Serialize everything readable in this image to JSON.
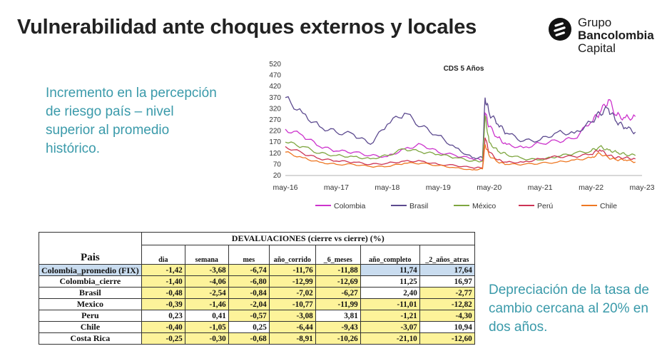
{
  "title": "Vulnerabilidad ante choques externos y locales",
  "logo": {
    "line1": "Grupo",
    "line2": "Bancolombia",
    "line3": "Capital"
  },
  "callout_left": "Incremento en la percepción de riesgo país – nivel superior al promedio histórico.",
  "callout_right": "Depreciación de la tasa de cambio cercana al 20% en dos años.",
  "colors": {
    "accent_text": "#3a9aaa",
    "highlight_yellow": "#fdf39a",
    "highlight_blue": "#c9dcef"
  },
  "chart_data": {
    "type": "line",
    "title": "CDS 5 Años",
    "ylim": [
      20,
      520
    ],
    "yticks": [
      "520",
      "470",
      "420",
      "370",
      "320",
      "270",
      "220",
      "170",
      "120",
      "70",
      "20"
    ],
    "xticks": [
      "may-16",
      "may-17",
      "may-18",
      "may-19",
      "may-20",
      "may-21",
      "may-22",
      "may-23"
    ],
    "x": [
      2016.33,
      2016.67,
      2017.0,
      2017.33,
      2017.67,
      2018.0,
      2018.33,
      2018.67,
      2019.0,
      2019.33,
      2019.67,
      2020.0,
      2020.2,
      2020.25,
      2020.33,
      2020.5,
      2020.67,
      2021.0,
      2021.33,
      2021.67,
      2022.0,
      2022.33,
      2022.5,
      2022.67,
      2022.83,
      2023.0,
      2023.2
    ],
    "series": [
      {
        "name": "Colombia",
        "color": "#cc33cc",
        "values": [
          228,
          200,
          150,
          130,
          125,
          110,
          105,
          140,
          160,
          125,
          110,
          95,
          90,
          300,
          240,
          190,
          160,
          145,
          165,
          175,
          185,
          260,
          300,
          360,
          290,
          280,
          285
        ]
      },
      {
        "name": "Brasil",
        "color": "#5c4a8f",
        "values": [
          370,
          300,
          240,
          215,
          205,
          160,
          250,
          300,
          240,
          200,
          145,
          100,
          100,
          370,
          300,
          250,
          210,
          175,
          180,
          215,
          210,
          260,
          300,
          320,
          260,
          235,
          215
        ]
      },
      {
        "name": "México",
        "color": "#7ea640",
        "values": [
          170,
          150,
          120,
          110,
          105,
          95,
          110,
          140,
          125,
          115,
          100,
          85,
          85,
          290,
          170,
          130,
          115,
          95,
          90,
          105,
          120,
          130,
          150,
          135,
          125,
          115,
          110
        ]
      },
      {
        "name": "Perú",
        "color": "#cc3355",
        "values": [
          150,
          120,
          95,
          85,
          80,
          70,
          75,
          85,
          85,
          70,
          65,
          55,
          55,
          190,
          125,
          90,
          80,
          80,
          95,
          105,
          105,
          115,
          135,
          110,
          100,
          100,
          95
        ]
      },
      {
        "name": "Chile",
        "color": "#ee7722",
        "values": [
          125,
          100,
          80,
          70,
          70,
          60,
          60,
          75,
          75,
          65,
          55,
          45,
          50,
          160,
          110,
          80,
          70,
          70,
          75,
          80,
          90,
          100,
          120,
          100,
          90,
          90,
          80
        ]
      }
    ]
  },
  "table": {
    "group_header": "DEVALUACIONES (cierre vs cierre) (%)",
    "country_header": "Pais",
    "columns": [
      "dia",
      "semana",
      "mes",
      "año_corrido",
      "_6_meses",
      "año_completo",
      "_2_años_atras"
    ],
    "rows": [
      {
        "country": "Colombia_promedio (FIX)",
        "values": [
          "-1,42",
          "-3,68",
          "-6,74",
          "-11,76",
          "-11,88",
          "11,74",
          "17,64"
        ],
        "cells": [
          "y",
          "y",
          "y",
          "y",
          "y",
          "b",
          "b"
        ],
        "country_cell": "b"
      },
      {
        "country": "Colombia_cierre",
        "values": [
          "-1,40",
          "-4,06",
          "-6,80",
          "-12,99",
          "-12,69",
          "11,25",
          "16,97"
        ],
        "cells": [
          "y",
          "y",
          "y",
          "y",
          "y",
          "w",
          "w"
        ],
        "country_cell": "w"
      },
      {
        "country": "Brasil",
        "values": [
          "-0,48",
          "-2,54",
          "-0,84",
          "-7,02",
          "-6,27",
          "2,40",
          "-2,77"
        ],
        "cells": [
          "y",
          "y",
          "y",
          "y",
          "y",
          "w",
          "y"
        ],
        "country_cell": "w"
      },
      {
        "country": "Mexico",
        "values": [
          "-0,39",
          "-1,46",
          "-2,04",
          "-10,77",
          "-11,99",
          "-11,01",
          "-12,82"
        ],
        "cells": [
          "y",
          "y",
          "y",
          "y",
          "y",
          "y",
          "y"
        ],
        "country_cell": "w"
      },
      {
        "country": "Peru",
        "values": [
          "0,23",
          "0,41",
          "-0,57",
          "-3,08",
          "3,81",
          "-1,21",
          "-4,30"
        ],
        "cells": [
          "w",
          "w",
          "y",
          "y",
          "w",
          "y",
          "y"
        ],
        "country_cell": "w"
      },
      {
        "country": "Chile",
        "values": [
          "-0,40",
          "-1,05",
          "0,25",
          "-6,44",
          "-9,43",
          "-3,07",
          "10,94"
        ],
        "cells": [
          "y",
          "y",
          "w",
          "y",
          "y",
          "y",
          "w"
        ],
        "country_cell": "w"
      },
      {
        "country": "Costa Rica",
        "values": [
          "-0,25",
          "-0,30",
          "-0,68",
          "-8,91",
          "-10,26",
          "-21,10",
          "-12,60"
        ],
        "cells": [
          "y",
          "y",
          "y",
          "y",
          "y",
          "y",
          "y"
        ],
        "country_cell": "w"
      }
    ]
  }
}
